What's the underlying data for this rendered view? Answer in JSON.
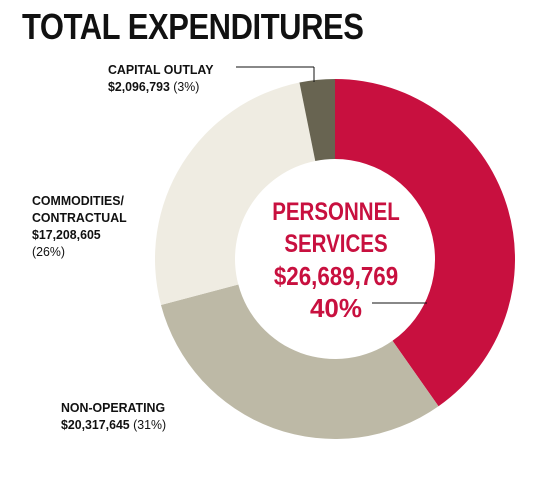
{
  "title": "TOTAL EXPENDITURES",
  "chart_data": {
    "type": "pie",
    "donut": true,
    "title": "TOTAL EXPENDITURES",
    "slices": [
      {
        "label": "PERSONNEL SERVICES",
        "amount": "$26,689,769",
        "value": 26689769,
        "percent": "40%",
        "color": "#c8103f"
      },
      {
        "label": "NON-OPERATING",
        "amount": "$20,317,645",
        "value": 20317645,
        "percent": "(31%)",
        "color": "#bdb9a6"
      },
      {
        "label": "COMMODITIES/ CONTRACTUAL",
        "amount": "$17,208,605",
        "value": 17208605,
        "percent": "(26%)",
        "color": "#efece2"
      },
      {
        "label": "CAPITAL OUTLAY",
        "amount": "$2,096,793",
        "value": 2096793,
        "percent": "(3%)",
        "color": "#686451"
      }
    ]
  },
  "labels": {
    "capital": {
      "cat": "CAPITAL OUTLAY",
      "amt": "$2,096,793",
      "pct": "(3%)"
    },
    "commodities": {
      "cat1": "COMMODITIES/",
      "cat2": "CONTRACTUAL",
      "amt": "$17,208,605",
      "pct": "(26%)"
    },
    "nonop": {
      "cat": "NON-OPERATING",
      "amt": "$20,317,645",
      "pct": "(31%)"
    },
    "personnel": {
      "cat1": "PERSONNEL",
      "cat2": "SERVICES",
      "amt": "$26,689,769",
      "pct": "40%"
    }
  }
}
